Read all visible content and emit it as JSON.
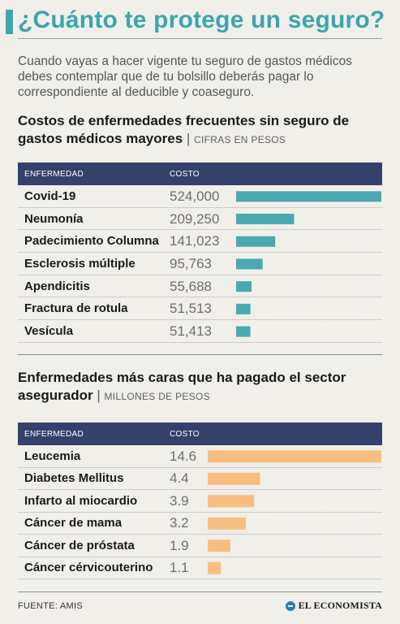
{
  "header": {
    "title": "¿Cuánto te protege un seguro?",
    "intro": "Cuando vayas a hacer vigente tu seguro de gastos médicos debes contemplar que de tu bolsillo deberás pagar lo correspondiente al deducible y coaseguro."
  },
  "section1": {
    "title": "Costos de enfermedades frecuentes sin seguro de gastos médicos mayores",
    "separator": "|",
    "unit": "CIFRAS EN PESOS",
    "col_disease": "ENFERMEDAD",
    "col_cost": "COSTO"
  },
  "section2": {
    "title": "Enfermedades más caras que ha pagado el sector asegurador",
    "separator": "|",
    "unit": "MILLONES DE PESOS",
    "col_disease": "ENFERMEDAD",
    "col_cost": "COSTO"
  },
  "chart_data": [
    {
      "type": "bar",
      "orientation": "horizontal",
      "color": "#4aa8b0",
      "categories": [
        "Covid-19",
        "Neumonía",
        "Padecimiento Columna",
        "Esclerosis múltiple",
        "Apendicitis",
        "Fractura de rotula",
        "Vesícula"
      ],
      "values": [
        524000,
        209250,
        141023,
        95763,
        55688,
        51513,
        51413
      ],
      "value_labels": [
        "524,000",
        "209,250",
        "141,023",
        "95,763",
        "55,688",
        "51,513",
        "51,413"
      ]
    },
    {
      "type": "bar",
      "orientation": "horizontal",
      "color": "#f7be80",
      "categories": [
        "Leucemia",
        "Diabetes Mellitus",
        "Infarto al miocardio",
        "Cáncer de mama",
        "Cáncer de próstata",
        "Cáncer cérvicouterino"
      ],
      "values": [
        14.6,
        4.4,
        3.9,
        3.2,
        1.9,
        1.1
      ],
      "value_labels": [
        "14.6",
        "4.4",
        "3.9",
        "3.2",
        "1.9",
        "1.1"
      ]
    }
  ],
  "footer": {
    "source": "FUENTE: AMIS",
    "brand": "EL ECONOMISTA"
  },
  "colors": {
    "accent": "#3aa6ae",
    "header_bg": "#35406b",
    "bar1": "#4aa8b0",
    "bar2": "#f7be80"
  }
}
